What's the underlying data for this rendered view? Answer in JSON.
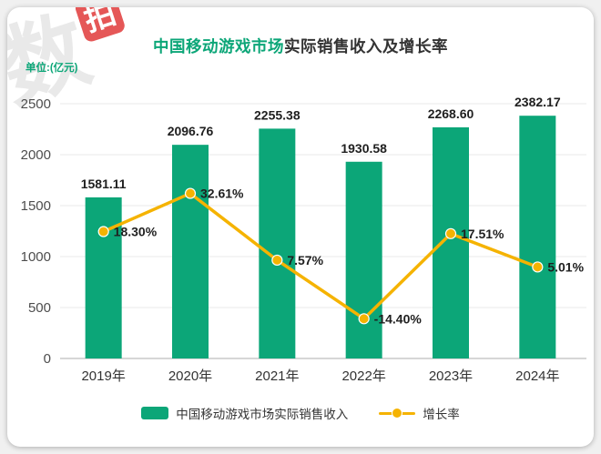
{
  "watermark": {
    "char_main": "数",
    "char_box": "拍"
  },
  "header": {
    "title_highlight": "中国移动游戏市场",
    "title_rest": "实际销售收入及增长率",
    "unit_label": "单位:(亿元)"
  },
  "colors": {
    "bar": "#0ca678",
    "line": "#f5b301",
    "title_green": "#0ca678",
    "grid": "#e8e8e8",
    "axis_line": "#c9c9c9",
    "tick_text": "#4d4d4d",
    "label_text": "#1f1f1f"
  },
  "chart_data": {
    "type": "bar+line",
    "title": "中国移动游戏市场实际销售收入及增长率",
    "categories": [
      "2019年",
      "2020年",
      "2021年",
      "2022年",
      "2023年",
      "2024年"
    ],
    "series": [
      {
        "name": "中国移动游戏市场实际销售收入",
        "type": "bar",
        "unit": "亿元",
        "values": [
          1581.11,
          2096.76,
          2255.38,
          1930.58,
          2268.6,
          2382.17
        ]
      },
      {
        "name": "增长率",
        "type": "line",
        "unit": "%",
        "values": [
          18.3,
          32.61,
          7.57,
          -14.4,
          17.51,
          5.01
        ]
      }
    ],
    "y_ticks": [
      0,
      500,
      1000,
      1500,
      2000,
      2500
    ],
    "ylim": [
      0,
      2500
    ],
    "grid": true,
    "legend_position": "bottom"
  },
  "legend": {
    "bar_label": "中国移动游戏市场实际销售收入",
    "line_label": "增长率"
  }
}
